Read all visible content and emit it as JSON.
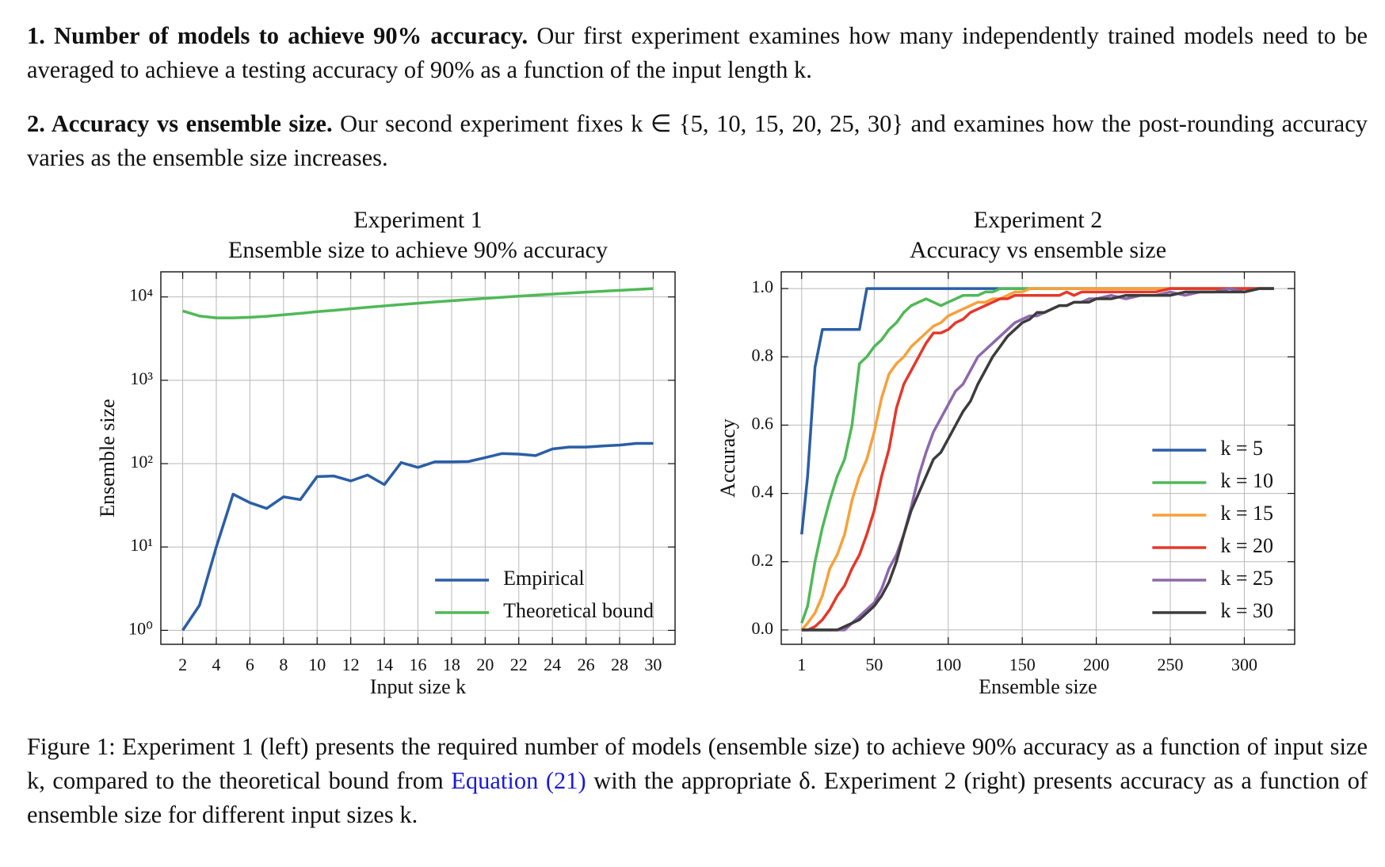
{
  "paragraphs": [
    {
      "heading": "1. Number of models to achieve 90% accuracy.",
      "text": "Our first experiment examines how many independently trained models need to be averaged to achieve a testing accuracy of 90% as a function of the input length k."
    },
    {
      "heading": "2. Accuracy vs ensemble size.",
      "text": "Our second experiment fixes k ∈ {5, 10, 15, 20, 25, 30} and examines how the post-rounding accuracy varies as the ensemble size increases."
    }
  ],
  "caption": {
    "before": "Figure 1: Experiment 1 (left) presents the required number of models (ensemble size) to achieve 90% accuracy as a function of input size k, compared to the theoretical bound from",
    "link": "Equation (21)",
    "after": "with the appropriate δ. Experiment 2 (right) presents accuracy as a function of ensemble size for different input sizes k."
  },
  "chart_data": [
    {
      "type": "line",
      "title": "Experiment 1",
      "subtitle": "Ensemble size to achieve 90% accuracy",
      "x_label": "Input size k",
      "y_label": "Ensemble size",
      "yscale": "log",
      "grid": true,
      "legend": "lower right",
      "x": [
        2,
        3,
        4,
        5,
        6,
        7,
        8,
        9,
        10,
        11,
        12,
        13,
        14,
        15,
        16,
        17,
        18,
        19,
        20,
        21,
        22,
        23,
        24,
        25,
        26,
        27,
        28,
        29,
        30
      ],
      "xlim": [
        0.7,
        31.3
      ],
      "xticks": [
        2,
        4,
        6,
        8,
        10,
        12,
        14,
        16,
        18,
        20,
        22,
        24,
        26,
        28,
        30
      ],
      "ylim": [
        0.68,
        20000
      ],
      "yticks": [
        {
          "value": 1,
          "label": "10⁰"
        },
        {
          "value": 10,
          "label": "10¹"
        },
        {
          "value": 100,
          "label": "10²"
        },
        {
          "value": 1000,
          "label": "10³"
        },
        {
          "value": 10000,
          "label": "10⁴"
        }
      ],
      "series": [
        {
          "name": "Empirical",
          "color": "#2b5ea7",
          "values": [
            1,
            2,
            10,
            43,
            34,
            29,
            40,
            37,
            70,
            71,
            62,
            73,
            56,
            103,
            90,
            105,
            105,
            106,
            118,
            132,
            130,
            125,
            150,
            158,
            158,
            163,
            167,
            175,
            175
          ]
        },
        {
          "name": "Theoretical bound",
          "color": "#4fb957",
          "values": [
            6800,
            5900,
            5600,
            5600,
            5700,
            5850,
            6100,
            6350,
            6650,
            6900,
            7200,
            7500,
            7800,
            8100,
            8400,
            8700,
            9000,
            9300,
            9600,
            9900,
            10200,
            10500,
            10800,
            11100,
            11400,
            11700,
            12000,
            12300,
            12600
          ]
        }
      ]
    },
    {
      "type": "line",
      "title": "Experiment 2",
      "subtitle": "Accuracy vs ensemble size",
      "x_label": "Ensemble size",
      "y_label": "Accuracy",
      "yscale": "linear",
      "grid": true,
      "legend": "lower right",
      "x": [
        1,
        5,
        10,
        15,
        20,
        25,
        30,
        35,
        40,
        45,
        50,
        55,
        60,
        65,
        70,
        75,
        80,
        85,
        90,
        95,
        100,
        105,
        110,
        115,
        120,
        125,
        130,
        135,
        140,
        145,
        150,
        155,
        160,
        165,
        170,
        175,
        180,
        185,
        190,
        195,
        200,
        210,
        220,
        230,
        240,
        250,
        260,
        270,
        280,
        290,
        300,
        310,
        320
      ],
      "xlim": [
        -12.8,
        334
      ],
      "xticks": [
        1,
        50,
        100,
        150,
        200,
        250,
        300
      ],
      "ylim": [
        -0.042,
        1.049
      ],
      "yticks": [
        {
          "value": 0,
          "label": "0.0"
        },
        0.2,
        0.4,
        0.6,
        0.8,
        {
          "value": 1,
          "label": "1.0"
        }
      ],
      "series": [
        {
          "name": "k = 5",
          "color": "#2b5ea7",
          "values": [
            0.28,
            0.45,
            0.77,
            0.88,
            0.88,
            0.88,
            0.88,
            0.88,
            0.88,
            1,
            1,
            1,
            1,
            1,
            1,
            1,
            1,
            1,
            1,
            1,
            1,
            1,
            1,
            1,
            1,
            1,
            1,
            1,
            1,
            1,
            1,
            1,
            1,
            1,
            1,
            1,
            1,
            1,
            1,
            1,
            1,
            1,
            1,
            1,
            1,
            1,
            1,
            1,
            1,
            1,
            1,
            1,
            1
          ]
        },
        {
          "name": "k = 10",
          "color": "#4fb957",
          "values": [
            0.02,
            0.07,
            0.2,
            0.3,
            0.38,
            0.45,
            0.5,
            0.6,
            0.78,
            0.8,
            0.83,
            0.85,
            0.88,
            0.9,
            0.93,
            0.95,
            0.96,
            0.97,
            0.96,
            0.95,
            0.96,
            0.97,
            0.98,
            0.98,
            0.98,
            0.99,
            0.99,
            1,
            1,
            1,
            1,
            1,
            1,
            1,
            1,
            1,
            1,
            1,
            1,
            1,
            1,
            1,
            1,
            1,
            1,
            1,
            1,
            1,
            1,
            1,
            1,
            1,
            1
          ]
        },
        {
          "name": "k = 15",
          "color": "#f7a13a",
          "values": [
            0,
            0.02,
            0.05,
            0.1,
            0.18,
            0.22,
            0.28,
            0.38,
            0.45,
            0.5,
            0.58,
            0.68,
            0.75,
            0.78,
            0.8,
            0.83,
            0.85,
            0.87,
            0.89,
            0.9,
            0.92,
            0.93,
            0.94,
            0.95,
            0.96,
            0.96,
            0.97,
            0.97,
            0.98,
            0.99,
            0.99,
            1,
            1,
            1,
            1,
            1,
            1,
            1,
            1,
            1,
            1,
            1,
            1,
            1,
            1,
            1,
            1,
            1,
            1,
            1,
            1,
            1,
            1
          ]
        },
        {
          "name": "k = 20",
          "color": "#e5382a",
          "values": [
            0,
            0,
            0.01,
            0.03,
            0.06,
            0.1,
            0.13,
            0.18,
            0.22,
            0.28,
            0.35,
            0.45,
            0.53,
            0.65,
            0.72,
            0.76,
            0.8,
            0.84,
            0.87,
            0.87,
            0.88,
            0.9,
            0.91,
            0.93,
            0.94,
            0.95,
            0.96,
            0.97,
            0.97,
            0.98,
            0.98,
            0.98,
            0.98,
            0.98,
            0.98,
            0.98,
            0.99,
            0.98,
            0.99,
            0.99,
            0.99,
            0.99,
            0.99,
            0.99,
            0.99,
            1,
            1,
            1,
            1,
            1,
            1,
            1,
            1
          ]
        },
        {
          "name": "k = 25",
          "color": "#8d68ac",
          "values": [
            0,
            0,
            0,
            0,
            0,
            0,
            0,
            0.02,
            0.04,
            0.06,
            0.08,
            0.12,
            0.18,
            0.22,
            0.28,
            0.36,
            0.45,
            0.52,
            0.58,
            0.62,
            0.66,
            0.7,
            0.72,
            0.76,
            0.8,
            0.82,
            0.84,
            0.86,
            0.88,
            0.9,
            0.91,
            0.92,
            0.92,
            0.93,
            0.94,
            0.95,
            0.95,
            0.96,
            0.96,
            0.97,
            0.97,
            0.98,
            0.97,
            0.98,
            0.98,
            0.99,
            0.98,
            0.99,
            0.99,
            1,
            0.99,
            1,
            1
          ]
        },
        {
          "name": "k = 30",
          "color": "#3c3c3c",
          "values": [
            0,
            0,
            0,
            0,
            0,
            0,
            0.01,
            0.02,
            0.03,
            0.05,
            0.07,
            0.1,
            0.14,
            0.2,
            0.28,
            0.35,
            0.4,
            0.45,
            0.5,
            0.52,
            0.56,
            0.6,
            0.64,
            0.67,
            0.72,
            0.76,
            0.8,
            0.83,
            0.86,
            0.88,
            0.9,
            0.91,
            0.93,
            0.93,
            0.94,
            0.95,
            0.95,
            0.96,
            0.96,
            0.96,
            0.97,
            0.97,
            0.98,
            0.98,
            0.98,
            0.98,
            0.99,
            0.99,
            0.99,
            0.99,
            0.99,
            1,
            1
          ]
        }
      ]
    }
  ]
}
